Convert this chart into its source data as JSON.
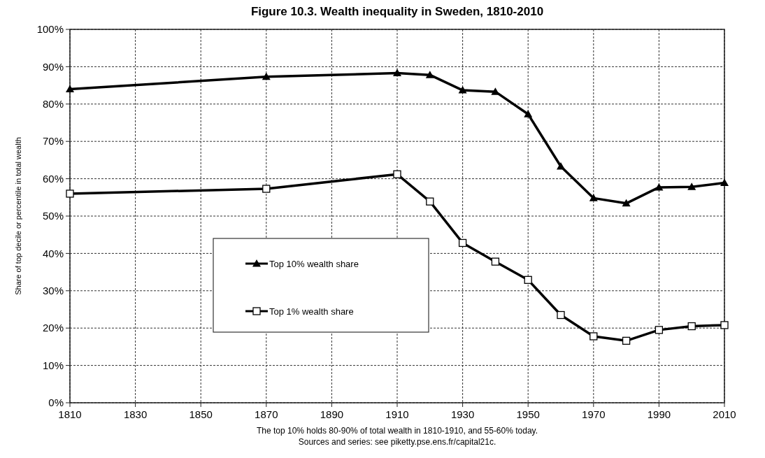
{
  "chart_data": {
    "type": "line",
    "title": "Figure 10.3. Wealth inequality in Sweden, 1810-2010",
    "ylabel": "Share of top decile or percentile in total wealth",
    "x": [
      1810,
      1870,
      1910,
      1920,
      1930,
      1940,
      1950,
      1960,
      1970,
      1980,
      1990,
      2000,
      2010
    ],
    "xlim": [
      1810,
      2010
    ],
    "xticks": [
      1810,
      1830,
      1850,
      1870,
      1890,
      1910,
      1930,
      1950,
      1970,
      1990,
      2010
    ],
    "ylim": [
      0,
      1
    ],
    "yticks": [
      {
        "value": 0,
        "label": "0%"
      },
      {
        "value": 0.1,
        "label": "10%"
      },
      {
        "value": 0.2,
        "label": "20%"
      },
      {
        "value": 0.3,
        "label": "30%"
      },
      {
        "value": 0.4,
        "label": "40%"
      },
      {
        "value": 0.5,
        "label": "50%"
      },
      {
        "value": 0.6,
        "label": "60%"
      },
      {
        "value": 0.7,
        "label": "70%"
      },
      {
        "value": 0.8,
        "label": "80%"
      },
      {
        "value": 0.9,
        "label": "90%"
      },
      {
        "value": 1,
        "label": "100%"
      }
    ],
    "series": [
      {
        "name": "Top 10% wealth share",
        "color": "#000000",
        "marker": "triangle",
        "values": [
          0.84,
          0.873,
          0.883,
          0.878,
          0.837,
          0.833,
          0.773,
          0.633,
          0.548,
          0.534,
          0.577,
          0.578,
          0.589
        ]
      },
      {
        "name": "Top 1% wealth share",
        "color": "#000000",
        "marker": "square",
        "values": [
          0.56,
          0.573,
          0.612,
          0.539,
          0.428,
          0.378,
          0.329,
          0.235,
          0.178,
          0.166,
          0.195,
          0.205,
          0.208
        ]
      }
    ],
    "grid": true,
    "legend": "center",
    "line_style": "solid",
    "annotations": [
      "The top 10% holds 80-90% of total wealth in 1810-1910, and 55-60% today.",
      "Sources and series: see piketty.pse.ens.fr/capital21c."
    ]
  }
}
